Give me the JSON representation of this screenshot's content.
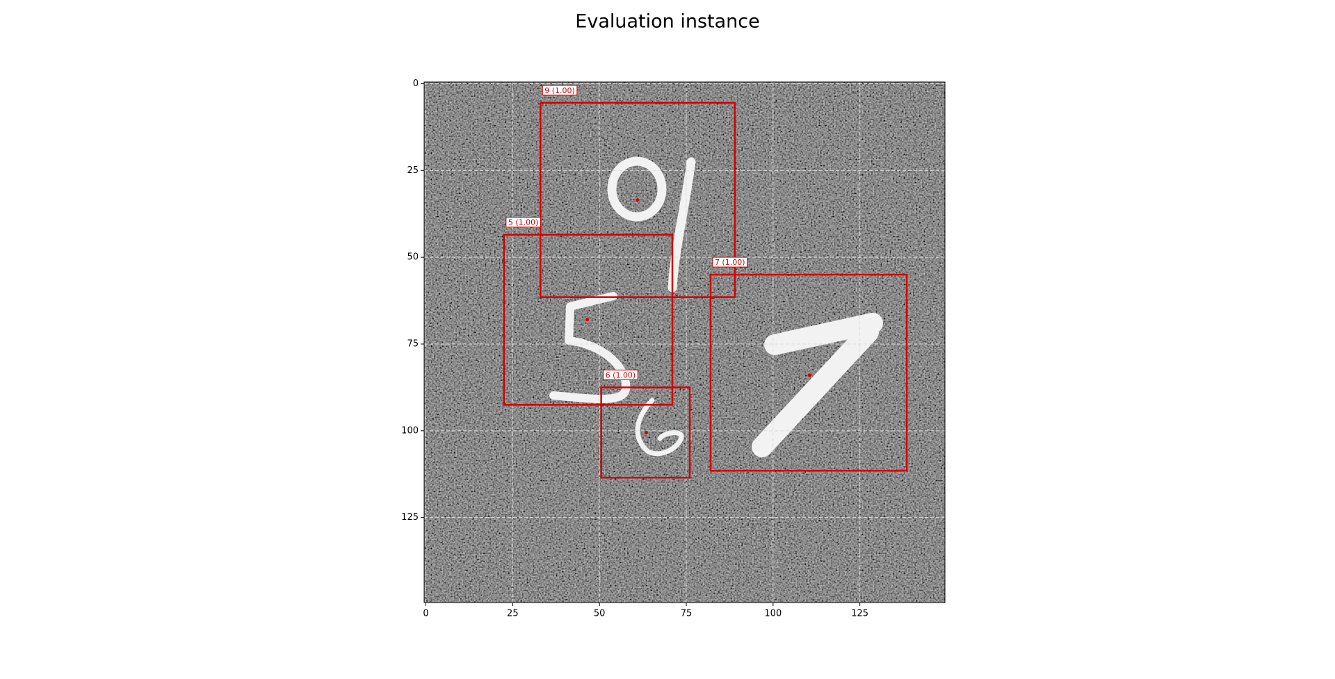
{
  "chart_data": {
    "type": "image",
    "title": "Evaluation instance",
    "xlim": [
      -0.5,
      149.5
    ],
    "ylim": [
      149.5,
      -0.5
    ],
    "xticks": [
      0,
      25,
      50,
      75,
      100,
      125
    ],
    "yticks": [
      0,
      25,
      50,
      75,
      100,
      125
    ],
    "grid": true,
    "color": "#d40000",
    "boxes": [
      {
        "label": "9 (1.00)",
        "x1": 33,
        "y1": 5.5,
        "x2": 89,
        "y2": 61.5,
        "cx": 61,
        "cy": 33.5
      },
      {
        "label": "5 (1.00)",
        "x1": 22.5,
        "y1": 43.5,
        "x2": 71,
        "y2": 92.5,
        "cx": 46.5,
        "cy": 68
      },
      {
        "label": "7 (1.00)",
        "x1": 82,
        "y1": 55,
        "x2": 138.5,
        "y2": 111.5,
        "cx": 110.5,
        "cy": 84
      },
      {
        "label": "6 (1.00)",
        "x1": 50.5,
        "y1": 87.5,
        "x2": 76,
        "y2": 113.5,
        "cx": 63.5,
        "cy": 100.5
      }
    ]
  }
}
